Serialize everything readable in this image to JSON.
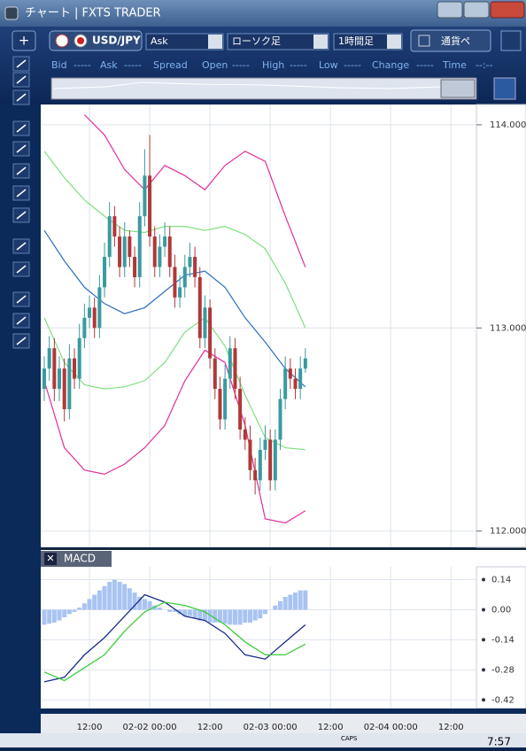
{
  "window": {
    "title": "チャート | FXTS TRADER"
  },
  "toolbar": {
    "symbol": "USD/JPY",
    "price_side": "Ask",
    "chart_type": "ローソク足",
    "timeframe": "1時間足",
    "pair_button": "通貨ペ"
  },
  "quote_bar": {
    "labels": [
      "Bid",
      "-----",
      "Ask",
      "-----",
      "Spread",
      "Open",
      "-----",
      "High",
      "-----",
      "Low",
      "-----",
      "Change",
      "-----",
      "Time",
      "--:--"
    ]
  },
  "price_chart": {
    "ylim": [
      111.92,
      114.1
    ],
    "yticks": [
      {
        "value": 114,
        "label": "114.000"
      },
      {
        "value": 113,
        "label": "113.000"
      },
      {
        "value": 112,
        "label": "112.000"
      }
    ],
    "xticks": [
      {
        "value": 9,
        "label": "12:00"
      },
      {
        "value": 21,
        "label": "02-02 00:00"
      },
      {
        "value": 33,
        "label": "12:00"
      },
      {
        "value": 45,
        "label": "02-03 00:00"
      },
      {
        "value": 57,
        "label": "12:00"
      },
      {
        "value": 69,
        "label": "02-04 00:00"
      },
      {
        "value": 81,
        "label": "12:00"
      }
    ],
    "candles": {
      "open": [
        112.7,
        112.8,
        112.9,
        112.7,
        112.8,
        112.6,
        112.85,
        112.75,
        112.95,
        113.05,
        113.1,
        113.0,
        113.2,
        113.35,
        113.55,
        113.45,
        113.3,
        113.45,
        113.35,
        113.25,
        113.55,
        113.75,
        113.45,
        113.3,
        113.4,
        113.45,
        113.3,
        113.15,
        113.2,
        113.3,
        113.35,
        113.25,
        112.95,
        113.1,
        112.85,
        112.7,
        112.55,
        112.75,
        112.9,
        112.7,
        112.5,
        112.45,
        112.3,
        112.25,
        112.4,
        112.45,
        112.25,
        112.45,
        112.65,
        112.8,
        112.75,
        112.7,
        112.8
      ],
      "high": [
        112.86,
        112.96,
        112.95,
        112.86,
        112.85,
        112.92,
        112.9,
        113.02,
        113.12,
        113.16,
        113.15,
        113.26,
        113.42,
        113.62,
        113.6,
        113.5,
        113.52,
        113.48,
        113.4,
        113.62,
        113.88,
        113.95,
        113.5,
        113.46,
        113.52,
        113.5,
        113.36,
        113.26,
        113.36,
        113.42,
        113.4,
        113.3,
        113.16,
        113.14,
        112.9,
        112.76,
        112.82,
        112.96,
        112.95,
        112.76,
        112.56,
        112.52,
        112.36,
        112.46,
        112.52,
        112.5,
        112.5,
        112.7,
        112.86,
        112.85,
        112.8,
        112.86,
        112.9
      ],
      "low": [
        112.64,
        112.74,
        112.64,
        112.64,
        112.54,
        112.55,
        112.7,
        112.7,
        112.9,
        113.0,
        112.95,
        112.95,
        113.15,
        113.3,
        113.4,
        113.25,
        113.25,
        113.3,
        113.2,
        113.2,
        113.5,
        113.4,
        113.25,
        113.25,
        113.35,
        113.25,
        113.1,
        113.1,
        113.15,
        113.25,
        113.2,
        112.9,
        112.9,
        112.8,
        112.65,
        112.5,
        112.5,
        112.7,
        112.65,
        112.45,
        112.4,
        112.25,
        112.18,
        112.2,
        112.35,
        112.2,
        112.2,
        112.4,
        112.6,
        112.7,
        112.65,
        112.65,
        112.78
      ],
      "close": [
        112.8,
        112.9,
        112.7,
        112.8,
        112.6,
        112.85,
        112.75,
        112.95,
        113.05,
        113.1,
        113.0,
        113.2,
        113.35,
        113.55,
        113.45,
        113.3,
        113.45,
        113.35,
        113.25,
        113.55,
        113.75,
        113.45,
        113.3,
        113.4,
        113.45,
        113.3,
        113.15,
        113.2,
        113.3,
        113.35,
        113.25,
        112.95,
        113.1,
        112.85,
        112.7,
        112.55,
        112.75,
        112.9,
        112.7,
        112.5,
        112.45,
        112.3,
        112.25,
        112.4,
        112.45,
        112.25,
        112.45,
        112.65,
        112.8,
        112.75,
        112.7,
        112.8,
        112.85
      ],
      "up_color": "#3a9aa0",
      "down_color": "#b03838"
    },
    "band_x": [
      0,
      4,
      8,
      12,
      16,
      20,
      24,
      28,
      32,
      36,
      40,
      44,
      48,
      52
    ],
    "bands": [
      {
        "color": "#e0309a",
        "values": [
          null,
          null,
          114.05,
          113.95,
          113.78,
          113.68,
          113.8,
          113.75,
          113.68,
          113.8,
          113.87,
          113.82,
          113.55,
          113.3
        ]
      },
      {
        "color": "#7fe07f",
        "values": [
          113.87,
          113.74,
          113.63,
          113.55,
          113.48,
          113.47,
          113.5,
          113.5,
          113.48,
          113.5,
          113.46,
          113.39,
          113.22,
          113.0
        ]
      },
      {
        "color": "#2b6fc0",
        "values": [
          113.48,
          113.33,
          113.2,
          113.12,
          113.07,
          113.1,
          113.18,
          113.26,
          113.28,
          113.2,
          113.05,
          112.93,
          112.8,
          112.71
        ]
      },
      {
        "color": "#7fe07f",
        "values": [
          113.05,
          112.83,
          112.72,
          112.7,
          112.71,
          112.74,
          112.83,
          112.98,
          113.05,
          112.91,
          112.67,
          112.46,
          112.41,
          112.4
        ]
      },
      {
        "color": "#e0309a",
        "values": [
          112.74,
          112.41,
          112.3,
          112.28,
          112.33,
          112.41,
          112.52,
          112.74,
          112.89,
          112.83,
          112.52,
          112.06,
          112.04,
          112.1
        ]
      }
    ]
  },
  "macd_chart": {
    "title": "MACD",
    "ylim": [
      -0.46,
      0.2
    ],
    "yticks": [
      0.14,
      {
        "value": 0,
        "label": "0.00"
      },
      -0.14,
      -0.28,
      -0.42
    ],
    "histogram": {
      "color": "#a9c3f2",
      "values": [
        -0.07,
        -0.065,
        -0.06,
        -0.05,
        -0.035,
        -0.02,
        -0.01,
        0.01,
        0.03,
        0.05,
        0.07,
        0.09,
        0.11,
        0.13,
        0.14,
        0.13,
        0.12,
        0.1,
        0.08,
        0.06,
        0.05,
        0.04,
        0.02,
        0.01,
        0.0,
        -0.01,
        -0.01,
        -0.02,
        -0.03,
        -0.03,
        -0.04,
        -0.05,
        -0.05,
        -0.06,
        -0.06,
        -0.06,
        -0.065,
        -0.07,
        -0.07,
        -0.07,
        -0.06,
        -0.06,
        -0.05,
        -0.04,
        -0.02,
        0.0,
        0.02,
        0.04,
        0.06,
        0.07,
        0.08,
        0.09,
        0.09
      ]
    },
    "line_x": [
      0,
      4,
      8,
      12,
      16,
      20,
      24,
      28,
      32,
      36,
      40,
      44,
      48,
      52
    ],
    "lines": [
      {
        "color": "#1a2a8a",
        "values": [
          -0.336,
          -0.315,
          -0.21,
          -0.13,
          -0.03,
          0.07,
          0.035,
          -0.03,
          -0.05,
          -0.11,
          -0.21,
          -0.23,
          -0.15,
          -0.07
        ]
      },
      {
        "color": "#3ccc3c",
        "values": [
          -0.29,
          -0.33,
          -0.27,
          -0.21,
          -0.1,
          -0.01,
          0.035,
          0.02,
          -0.01,
          -0.07,
          -0.15,
          -0.21,
          -0.21,
          -0.16
        ]
      }
    ]
  },
  "taskbar": {
    "caps": "CAPS",
    "clock": "7:57"
  }
}
